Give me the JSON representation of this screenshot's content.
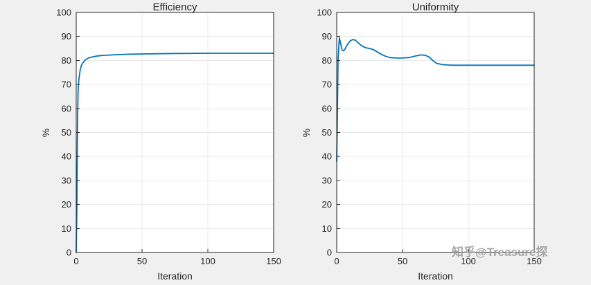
{
  "figure": {
    "background": "#f0f0f0",
    "watermark": "知乎@Treasure探"
  },
  "chart_data": [
    {
      "type": "line",
      "title": "Efficiency",
      "xlabel": "Iteration",
      "ylabel": "%",
      "xlim": [
        0,
        150
      ],
      "ylim": [
        0,
        100
      ],
      "xticks": [
        0,
        50,
        100,
        150
      ],
      "yticks": [
        0,
        10,
        20,
        30,
        40,
        50,
        60,
        70,
        80,
        90,
        100
      ],
      "grid": true,
      "legend": "none",
      "line_color": "#0072BD",
      "grid_color": "#e8e8e8",
      "axis_color": "#262626",
      "series": [
        {
          "name": "Efficiency",
          "x": [
            0,
            0.5,
            1,
            1.5,
            2,
            3,
            4,
            5,
            7,
            10,
            15,
            20,
            30,
            40,
            50,
            75,
            100,
            125,
            150
          ],
          "y": [
            0,
            20,
            55,
            68,
            72,
            76,
            78,
            79,
            80.3,
            81.2,
            81.8,
            82.1,
            82.4,
            82.6,
            82.7,
            82.9,
            83,
            83,
            83
          ]
        }
      ]
    },
    {
      "type": "line",
      "title": "Uniformity",
      "xlabel": "Iteration",
      "ylabel": "%",
      "xlim": [
        0,
        150
      ],
      "ylim": [
        0,
        100
      ],
      "xticks": [
        0,
        50,
        100,
        150
      ],
      "yticks": [
        0,
        10,
        20,
        30,
        40,
        50,
        60,
        70,
        80,
        90,
        100
      ],
      "grid": true,
      "legend": "none",
      "line_color": "#0072BD",
      "grid_color": "#e8e8e8",
      "axis_color": "#262626",
      "series": [
        {
          "name": "Uniformity",
          "x": [
            0,
            0.5,
            1,
            2,
            3,
            4,
            5,
            6,
            8,
            10,
            12,
            14,
            16,
            18,
            20,
            22,
            25,
            28,
            31,
            34,
            37,
            40,
            45,
            50,
            55,
            58,
            61,
            64,
            67,
            70,
            72,
            74,
            76,
            80,
            85,
            90,
            100,
            120,
            150
          ],
          "y": [
            38,
            55,
            80,
            89.5,
            87,
            84.5,
            84,
            84.5,
            86.5,
            88,
            88.7,
            88.5,
            87.5,
            86.5,
            85.8,
            85.3,
            85,
            84.5,
            83.5,
            82.5,
            81.8,
            81.2,
            81,
            81,
            81.2,
            81.6,
            82,
            82.3,
            82.2,
            81.5,
            80.5,
            79.5,
            78.8,
            78.3,
            78.1,
            78,
            78,
            78,
            78
          ]
        }
      ]
    }
  ]
}
